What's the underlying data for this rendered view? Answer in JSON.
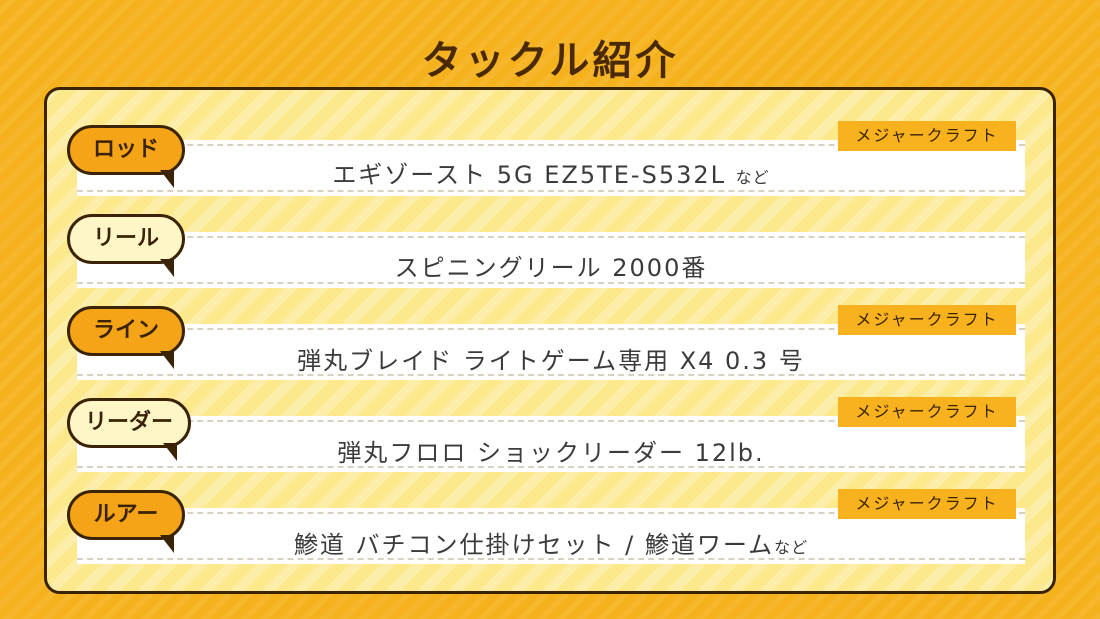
{
  "title": "タックル紹介",
  "maker_label": "メジャークラフト",
  "items": [
    {
      "label": "ロッド",
      "value": "エギゾースト 5G EZ5TE-S532L",
      "suffix": "など"
    },
    {
      "label": "リール",
      "value": "スピニングリール 2000番",
      "suffix": ""
    },
    {
      "label": "ライン",
      "value": "弾丸ブレイド ライトゲーム専用 X4 0.3 号",
      "suffix": ""
    },
    {
      "label": "リーダー",
      "value": "弾丸フロロ ショックリーダー 12lb.",
      "suffix": ""
    },
    {
      "label": "ルアー",
      "value": "鯵道 バチコン仕掛けセット / 鯵道ワーム",
      "suffix": "など"
    }
  ]
}
